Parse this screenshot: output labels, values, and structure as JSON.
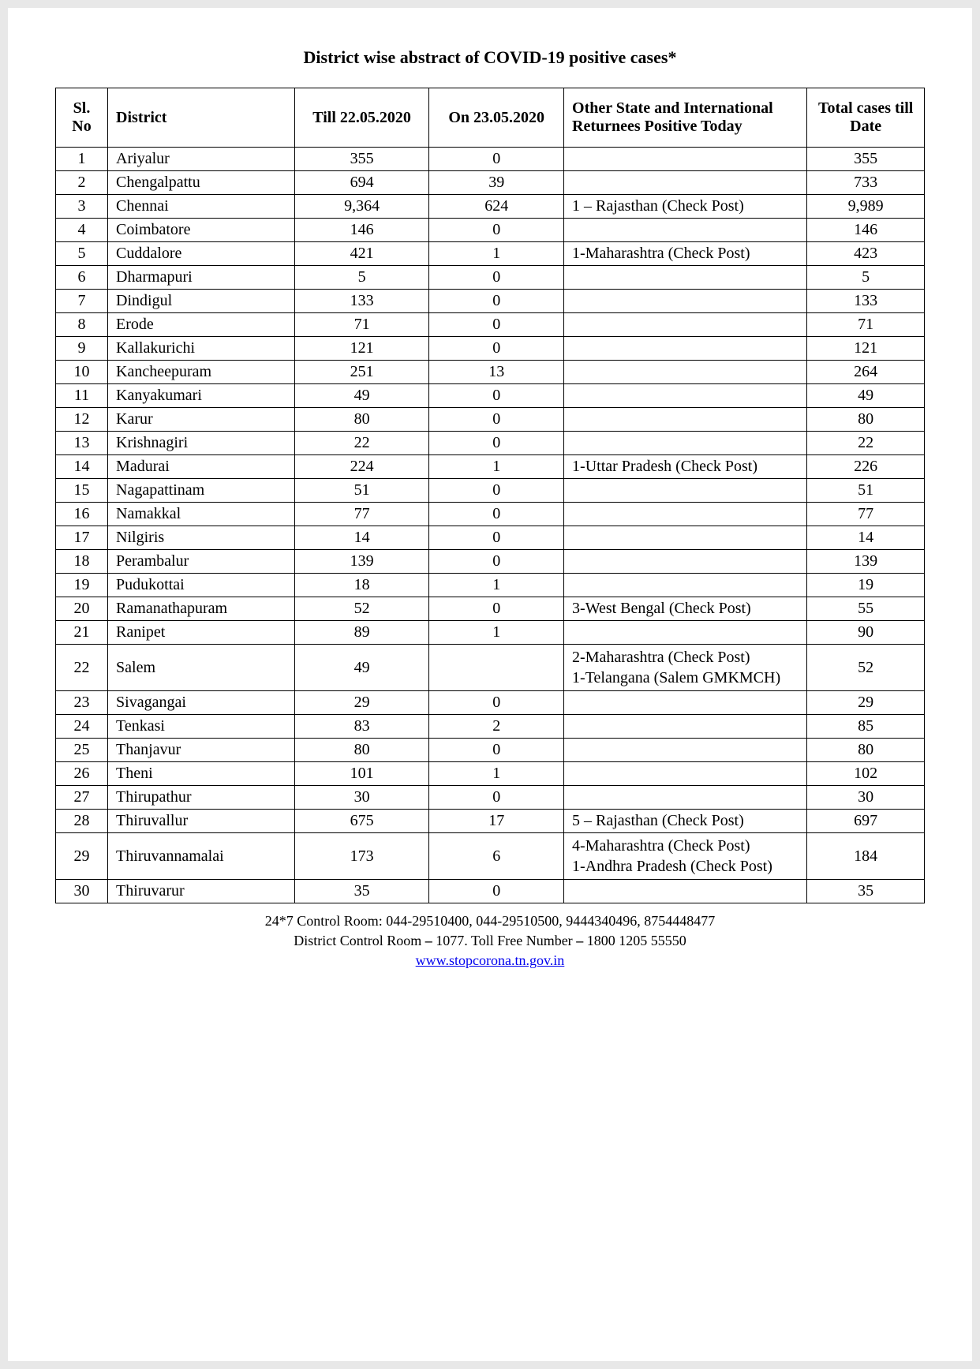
{
  "title": "District wise abstract of COVID-19 positive cases*",
  "columns": [
    "Sl. No",
    "District",
    "Till 22.05.2020",
    "On 23.05.2020",
    "Other State and International Returnees Positive Today",
    "Total cases till Date"
  ],
  "rows": [
    {
      "sl": "1",
      "district": "Ariyalur",
      "till": "355",
      "on": "0",
      "other": "",
      "total": "355"
    },
    {
      "sl": "2",
      "district": "Chengalpattu",
      "till": "694",
      "on": "39",
      "other": "",
      "total": "733"
    },
    {
      "sl": "3",
      "district": "Chennai",
      "till": "9,364",
      "on": "624",
      "other": " 1 – Rajasthan (Check Post)",
      "total": "9,989"
    },
    {
      "sl": "4",
      "district": "Coimbatore",
      "till": "146",
      "on": "0",
      "other": "",
      "total": "146"
    },
    {
      "sl": "5",
      "district": "Cuddalore",
      "till": "421",
      "on": "1",
      "other": "1-Maharashtra (Check Post)",
      "total": "423"
    },
    {
      "sl": "6",
      "district": "Dharmapuri",
      "till": "5",
      "on": "0",
      "other": "",
      "total": "5"
    },
    {
      "sl": "7",
      "district": "Dindigul",
      "till": "133",
      "on": "0",
      "other": "",
      "total": "133"
    },
    {
      "sl": "8",
      "district": "Erode",
      "till": "71",
      "on": "0",
      "other": "",
      "total": "71"
    },
    {
      "sl": "9",
      "district": "Kallakurichi",
      "till": "121",
      "on": "0",
      "other": "",
      "total": "121"
    },
    {
      "sl": "10",
      "district": "Kancheepuram",
      "till": "251",
      "on": "13",
      "other": "",
      "total": "264"
    },
    {
      "sl": "11",
      "district": "Kanyakumari",
      "till": "49",
      "on": "0",
      "other": "",
      "total": "49"
    },
    {
      "sl": "12",
      "district": "Karur",
      "till": "80",
      "on": "0",
      "other": "",
      "total": "80"
    },
    {
      "sl": "13",
      "district": "Krishnagiri",
      "till": "22",
      "on": "0",
      "other": "",
      "total": "22"
    },
    {
      "sl": "14",
      "district": "Madurai",
      "till": "224",
      "on": "1",
      "other": "1-Uttar Pradesh (Check Post)",
      "total": "226"
    },
    {
      "sl": "15",
      "district": "Nagapattinam",
      "till": "51",
      "on": "0",
      "other": "",
      "total": "51"
    },
    {
      "sl": "16",
      "district": "Namakkal",
      "till": "77",
      "on": "0",
      "other": "",
      "total": "77"
    },
    {
      "sl": "17",
      "district": "Nilgiris",
      "till": "14",
      "on": "0",
      "other": "",
      "total": "14"
    },
    {
      "sl": "18",
      "district": "Perambalur",
      "till": "139",
      "on": "0",
      "other": "",
      "total": "139"
    },
    {
      "sl": "19",
      "district": "Pudukottai",
      "till": "18",
      "on": "1",
      "other": "",
      "total": "19"
    },
    {
      "sl": "20",
      "district": "Ramanathapuram",
      "till": "52",
      "on": "0",
      "other": "3-West Bengal (Check Post)",
      "total": "55"
    },
    {
      "sl": "21",
      "district": "Ranipet",
      "till": "89",
      "on": "1",
      "other": "",
      "total": "90"
    },
    {
      "sl": "22",
      "district": "Salem",
      "till": "49",
      "on": "",
      "other": "2-Maharashtra (Check Post)\n1-Telangana (Salem GMKMCH)",
      "total": "52"
    },
    {
      "sl": "23",
      "district": "Sivagangai",
      "till": "29",
      "on": "0",
      "other": "",
      "total": "29"
    },
    {
      "sl": "24",
      "district": "Tenkasi",
      "till": "83",
      "on": "2",
      "other": "",
      "total": "85"
    },
    {
      "sl": "25",
      "district": "Thanjavur",
      "till": "80",
      "on": "0",
      "other": "",
      "total": "80"
    },
    {
      "sl": "26",
      "district": "Theni",
      "till": "101",
      "on": "1",
      "other": "",
      "total": "102"
    },
    {
      "sl": "27",
      "district": "Thirupathur",
      "till": "30",
      "on": "0",
      "other": "",
      "total": "30"
    },
    {
      "sl": "28",
      "district": "Thiruvallur",
      "till": "675",
      "on": "17",
      "other": " 5 – Rajasthan (Check Post)",
      "total": "697"
    },
    {
      "sl": "29",
      "district": "Thiruvannamalai",
      "till": "173",
      "on": "6",
      "other": "4-Maharashtra (Check Post)\n1-Andhra Pradesh (Check Post)",
      "total": "184"
    },
    {
      "sl": "30",
      "district": "Thiruvarur",
      "till": "35",
      "on": "0",
      "other": "",
      "total": "35"
    }
  ],
  "footer": {
    "line1": "24*7 Control Room: 044-29510400, 044-29510500, 9444340496, 8754448477",
    "line2_a": "District Control Room ",
    "line2_b": " 1077. Toll Free Number ",
    "line2_c": " 1800 1205 55550",
    "dash": "–",
    "link_text": "www.stopcorona.tn.gov.in",
    "link_href": "http://www.stopcorona.tn.gov.in"
  },
  "styling": {
    "page_bg": "#ffffff",
    "body_bg": "#e8e8e8",
    "border_color": "#000000",
    "text_color": "#000000",
    "link_color": "#0000ee",
    "title_fontsize": 22,
    "table_fontsize": 20,
    "footer_fontsize": 18,
    "font_family": "Bookman Old Style, Georgia, serif"
  }
}
